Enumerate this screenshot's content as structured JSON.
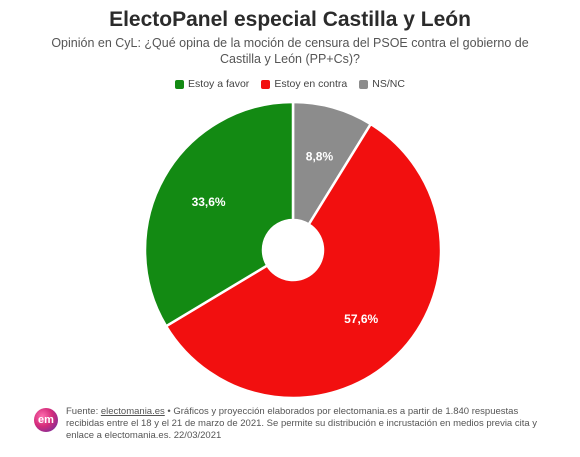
{
  "header": {
    "title": "ElectoPanel especial Castilla y León",
    "subtitle": "Opinión en CyL: ¿Qué opina de la moción de censura del PSOE contra el gobierno de Castilla y León (PP+Cs)?"
  },
  "chart_data": {
    "type": "pie",
    "donut": true,
    "title": "ElectoPanel especial Castilla y León",
    "subtitle": "Opinión en CyL: ¿Qué opina de la moción de censura del PSOE contra el gobierno de Castilla y León (PP+Cs)?",
    "legend_position": "top",
    "categories": [
      "Estoy a favor",
      "Estoy en contra",
      "NS/NC"
    ],
    "values": [
      33.6,
      57.6,
      8.8
    ],
    "labels": [
      "33,6%",
      "57,6%",
      "8,8%"
    ],
    "colors": [
      "#138a13",
      "#f20f0f",
      "#8c8c8c"
    ]
  },
  "footer": {
    "logo_text": "em",
    "prefix": "Fuente: ",
    "link": "electomania.es",
    "text": " • Gráficos y proyección elaborados por electomania.es a partir de 1.840 respuestas recibidas entre el 18 y el 21 de marzo de 2021. Se permite su distribución e incrustación en medios previa cita y enlace a electomania.es. 22/03/2021"
  }
}
